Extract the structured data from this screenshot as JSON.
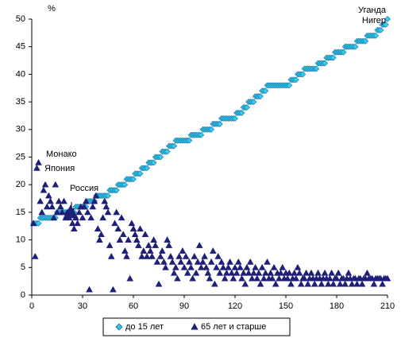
{
  "chart_data": {
    "type": "scatter",
    "y_label": "%",
    "xlim": [
      0,
      210
    ],
    "xticks": [
      0,
      30,
      60,
      90,
      120,
      150,
      180,
      210
    ],
    "ylim": [
      0,
      50
    ],
    "yticks": [
      0,
      5,
      10,
      15,
      20,
      25,
      30,
      35,
      40,
      45,
      50
    ],
    "annotations": [
      "Уганда",
      "Нигер",
      "Монако",
      "Япония",
      "Россия"
    ],
    "x": [
      1,
      2,
      3,
      4,
      5,
      6,
      7,
      8,
      9,
      10,
      11,
      12,
      13,
      14,
      15,
      16,
      17,
      18,
      19,
      20,
      21,
      22,
      23,
      24,
      25,
      26,
      27,
      28,
      29,
      30,
      31,
      32,
      33,
      34,
      35,
      36,
      37,
      38,
      39,
      40,
      41,
      42,
      43,
      44,
      45,
      46,
      47,
      48,
      49,
      50,
      51,
      52,
      53,
      54,
      55,
      56,
      57,
      58,
      59,
      60,
      61,
      62,
      63,
      64,
      65,
      66,
      67,
      68,
      69,
      70,
      71,
      72,
      73,
      74,
      75,
      76,
      77,
      78,
      79,
      80,
      81,
      82,
      83,
      84,
      85,
      86,
      87,
      88,
      89,
      90,
      91,
      92,
      93,
      94,
      95,
      96,
      97,
      98,
      99,
      100,
      101,
      102,
      103,
      104,
      105,
      106,
      107,
      108,
      109,
      110,
      111,
      112,
      113,
      114,
      115,
      116,
      117,
      118,
      119,
      120,
      121,
      122,
      123,
      124,
      125,
      126,
      127,
      128,
      129,
      130,
      131,
      132,
      133,
      134,
      135,
      136,
      137,
      138,
      139,
      140,
      141,
      142,
      143,
      144,
      145,
      146,
      147,
      148,
      149,
      150,
      151,
      152,
      153,
      154,
      155,
      156,
      157,
      158,
      159,
      160,
      161,
      162,
      163,
      164,
      165,
      166,
      167,
      168,
      169,
      170,
      171,
      172,
      173,
      174,
      175,
      176,
      177,
      178,
      179,
      180,
      181,
      182,
      183,
      184,
      185,
      186,
      187,
      188,
      189,
      190,
      191,
      192,
      193,
      194,
      195,
      196,
      197,
      198,
      199,
      200,
      201,
      202,
      203,
      204,
      205,
      206,
      207,
      208,
      209,
      210
    ],
    "series": [
      {
        "name": "до 15 лет",
        "color": "#33ccee",
        "marker": "diamond",
        "values": [
          13,
          13,
          13,
          13,
          14,
          14,
          14,
          14,
          14,
          14,
          14,
          14,
          14,
          14,
          15,
          15,
          15,
          15,
          15,
          15,
          15,
          15,
          15,
          15,
          15,
          16,
          16,
          16,
          16,
          16,
          16,
          16,
          17,
          17,
          17,
          17,
          17,
          18,
          18,
          18,
          18,
          18,
          18,
          18,
          18,
          19,
          19,
          19,
          19,
          19,
          20,
          20,
          20,
          20,
          20,
          21,
          21,
          21,
          21,
          21,
          22,
          22,
          22,
          22,
          23,
          23,
          23,
          23,
          24,
          24,
          24,
          24,
          25,
          25,
          25,
          25,
          26,
          26,
          26,
          26,
          27,
          27,
          27,
          27,
          28,
          28,
          28,
          28,
          28,
          28,
          28,
          28,
          28,
          29,
          29,
          29,
          29,
          29,
          29,
          29,
          30,
          30,
          30,
          30,
          30,
          30,
          31,
          31,
          31,
          31,
          31,
          32,
          32,
          32,
          32,
          32,
          32,
          32,
          32,
          32,
          33,
          33,
          33,
          33,
          34,
          34,
          34,
          35,
          35,
          35,
          35,
          36,
          36,
          36,
          36,
          37,
          37,
          37,
          38,
          38,
          38,
          38,
          38,
          38,
          38,
          38,
          38,
          38,
          38,
          38,
          38,
          38,
          39,
          39,
          39,
          39,
          40,
          40,
          40,
          40,
          41,
          41,
          41,
          41,
          41,
          41,
          41,
          41,
          42,
          42,
          42,
          42,
          42,
          43,
          43,
          43,
          43,
          43,
          44,
          44,
          44,
          44,
          44,
          44,
          45,
          45,
          45,
          45,
          45,
          45,
          45,
          46,
          46,
          46,
          46,
          46,
          46,
          47,
          47,
          47,
          47,
          47,
          47,
          48,
          48,
          48,
          49,
          49,
          49,
          50
        ]
      },
      {
        "name": "65 лет и старше",
        "color": "#1f1f7a",
        "marker": "triangle",
        "values": [
          13,
          7,
          23,
          24,
          17,
          15,
          19,
          20,
          16,
          18,
          17,
          16,
          14,
          20,
          15,
          17,
          16,
          15,
          17,
          14,
          15,
          14,
          15,
          13,
          12,
          14,
          13,
          15,
          16,
          14,
          16,
          17,
          15,
          1,
          14,
          16,
          17,
          18,
          12,
          10,
          11,
          14,
          17,
          16,
          15,
          9,
          7,
          1,
          13,
          15,
          12,
          10,
          14,
          11,
          8,
          7,
          10,
          3,
          13,
          12,
          11,
          10,
          9,
          12,
          7,
          8,
          11,
          7,
          9,
          8,
          7,
          10,
          9,
          6,
          2,
          7,
          8,
          6,
          5,
          10,
          9,
          7,
          6,
          4,
          5,
          3,
          7,
          6,
          8,
          5,
          7,
          4,
          6,
          5,
          3,
          7,
          4,
          6,
          9,
          5,
          6,
          7,
          5,
          4,
          3,
          6,
          8,
          2,
          5,
          7,
          4,
          6,
          5,
          3,
          4,
          5,
          6,
          4,
          3,
          5,
          4,
          6,
          5,
          3,
          4,
          2,
          5,
          4,
          6,
          3,
          4,
          5,
          3,
          4,
          2,
          5,
          3,
          4,
          6,
          3,
          4,
          3,
          5,
          2,
          4,
          3,
          4,
          5,
          3,
          4,
          3,
          4,
          2,
          3,
          4,
          3,
          5,
          4,
          2,
          3,
          3,
          4,
          2,
          3,
          4,
          3,
          2,
          3,
          4,
          3,
          2,
          3,
          4,
          3,
          2,
          3,
          4,
          2,
          3,
          3,
          4,
          2,
          3,
          3,
          2,
          3,
          4,
          3,
          2,
          3,
          3,
          2,
          3,
          3,
          2,
          3,
          3,
          4,
          3,
          3,
          3,
          2,
          3,
          3,
          3,
          3,
          2,
          3,
          3,
          3
        ]
      }
    ]
  }
}
